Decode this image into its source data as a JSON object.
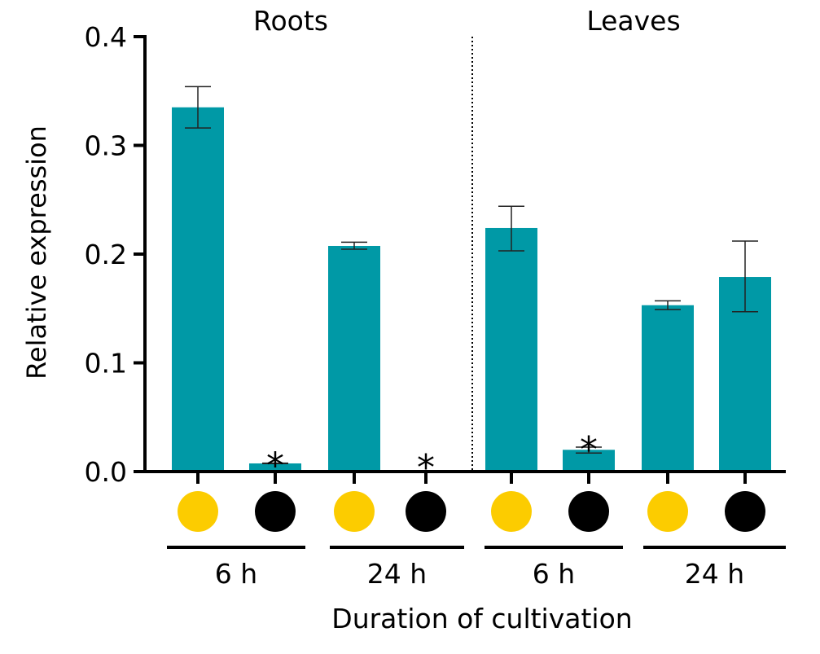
{
  "chart_data": {
    "type": "bar",
    "ylabel": "Relative expression",
    "xlabel": "Duration of cultivation",
    "ylim": [
      0,
      0.4
    ],
    "yticks": [
      "0.0",
      "0.1",
      "0.2",
      "0.3",
      "0.4"
    ],
    "panels": [
      "Roots",
      "Leaves"
    ],
    "groups": [
      "6 h",
      "24 h",
      "6 h",
      "24 h"
    ],
    "bar_color": "#0099a6",
    "light_color": "#fccc00",
    "dark_color": "#000000",
    "bars": [
      {
        "panel": "Roots",
        "time": "6 h",
        "condition": "light",
        "value": 0.335,
        "err_low": 0.316,
        "err_high": 0.354,
        "significant": false
      },
      {
        "panel": "Roots",
        "time": "6 h",
        "condition": "dark",
        "value": 0.0075,
        "err_low": 0.0073,
        "err_high": 0.0078,
        "significant": true
      },
      {
        "panel": "Roots",
        "time": "24 h",
        "condition": "light",
        "value": 0.2075,
        "err_low": 0.2045,
        "err_high": 0.211,
        "significant": false
      },
      {
        "panel": "Roots",
        "time": "24 h",
        "condition": "dark",
        "value": 0.0,
        "err_low": 0.0,
        "err_high": 0.0,
        "significant": true
      },
      {
        "panel": "Leaves",
        "time": "6 h",
        "condition": "light",
        "value": 0.224,
        "err_low": 0.203,
        "err_high": 0.244,
        "significant": false
      },
      {
        "panel": "Leaves",
        "time": "6 h",
        "condition": "dark",
        "value": 0.02,
        "err_low": 0.017,
        "err_high": 0.0225,
        "significant": true
      },
      {
        "panel": "Leaves",
        "time": "24 h",
        "condition": "light",
        "value": 0.153,
        "err_low": 0.149,
        "err_high": 0.157,
        "significant": false
      },
      {
        "panel": "Leaves",
        "time": "24 h",
        "condition": "dark",
        "value": 0.179,
        "err_low": 0.147,
        "err_high": 0.212,
        "significant": false
      }
    ],
    "significance_marker": "*",
    "grid": false,
    "legend": "none"
  }
}
